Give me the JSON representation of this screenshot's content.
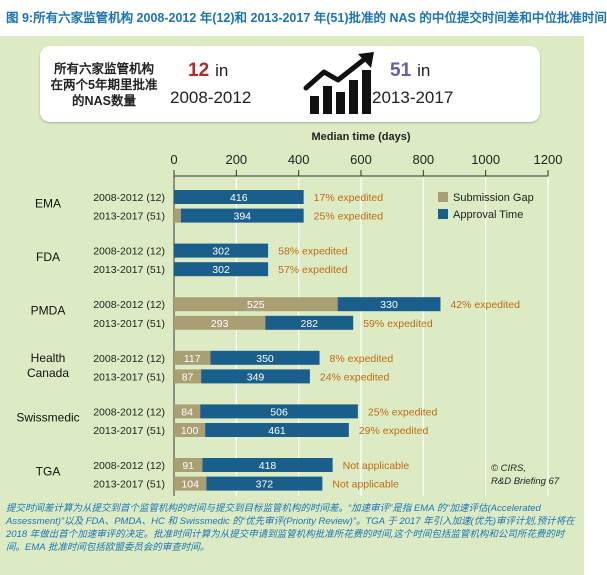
{
  "title": "图 9:所有六家监管机构 2008-2012 年(12)和 2013-2017 年(51)批准的 NAS 的中位提交时间差和中位批准时间",
  "summary": {
    "description": "所有六家监管机构在两个5年期里批准的NAS数量",
    "count_a": "12",
    "unit": "in",
    "period_a": "2008-2012",
    "count_b": "51",
    "period_b": "2013-2017",
    "color_a": "#b5282e",
    "color_b": "#6b5aa8",
    "icon": "growth-bar-chart-icon"
  },
  "chart_data": {
    "type": "bar",
    "orientation": "horizontal",
    "stacked": true,
    "xlabel": "Median time (days)",
    "xlim": [
      0,
      1200
    ],
    "xticks": [
      0,
      200,
      400,
      600,
      800,
      1000,
      1200
    ],
    "grid": true,
    "legend_position": "top-right",
    "legend": [
      {
        "name": "Submission Gap",
        "color": "#aa9f73"
      },
      {
        "name": "Approval Time",
        "color": "#1a5f8c"
      }
    ],
    "agencies": [
      {
        "name": "EMA",
        "rows": [
          {
            "label": "2008-2012 (12)",
            "gap": 0,
            "approval": 416,
            "note": "17% expedited"
          },
          {
            "label": "2013-2017 (51)",
            "gap": 22,
            "approval": 394,
            "note": "25% expedited"
          }
        ]
      },
      {
        "name": "FDA",
        "rows": [
          {
            "label": "2008-2012 (12)",
            "gap": 0,
            "approval": 302,
            "note": "58% expedited"
          },
          {
            "label": "2013-2017 (51)",
            "gap": 0,
            "approval": 302,
            "note": "57% expedited"
          }
        ]
      },
      {
        "name": "PMDA",
        "rows": [
          {
            "label": "2008-2012 (12)",
            "gap": 525,
            "approval": 330,
            "note": "42% expedited"
          },
          {
            "label": "2013-2017 (51)",
            "gap": 293,
            "approval": 282,
            "note": "59% expedited"
          }
        ]
      },
      {
        "name": "Health Canada",
        "rows": [
          {
            "label": "2008-2012 (12)",
            "gap": 117,
            "approval": 350,
            "note": "8% expedited"
          },
          {
            "label": "2013-2017 (51)",
            "gap": 87,
            "approval": 349,
            "note": "24% expedited"
          }
        ]
      },
      {
        "name": "Swissmedic",
        "rows": [
          {
            "label": "2008-2012 (12)",
            "gap": 84,
            "approval": 506,
            "note": "25% expedited"
          },
          {
            "label": "2013-2017 (51)",
            "gap": 100,
            "approval": 461,
            "note": "29% expedited"
          }
        ]
      },
      {
        "name": "TGA",
        "rows": [
          {
            "label": "2008-2012 (12)",
            "gap": 91,
            "approval": 418,
            "note": "Not applicable"
          },
          {
            "label": "2013-2017 (51)",
            "gap": 104,
            "approval": 372,
            "note": "Not applicable"
          }
        ]
      }
    ],
    "source": "© CIRS, R&D Briefing 67",
    "note_color": "#c06a12"
  },
  "footnote": "提交时间差计算为从提交到首个监管机构的时间与提交到目标监管机构的时间差。“加速审评”是指 EMA 的“加速评估(Accelerated Assessment)”以及 FDA、PMDA、HC 和 Swissmedic 的“优先审评(Priority Review)”。TGA 于 2017 年引入加速(优先)审评计划,预计将在 2018 年做出首个加速审评的决定。批准时间计算为从提交申请到监管机构批准所花费的时间,这个时间包括监管机构和公司所花费的时间。EMA 批准时间包括欧盟委员会的审查时间。"
}
